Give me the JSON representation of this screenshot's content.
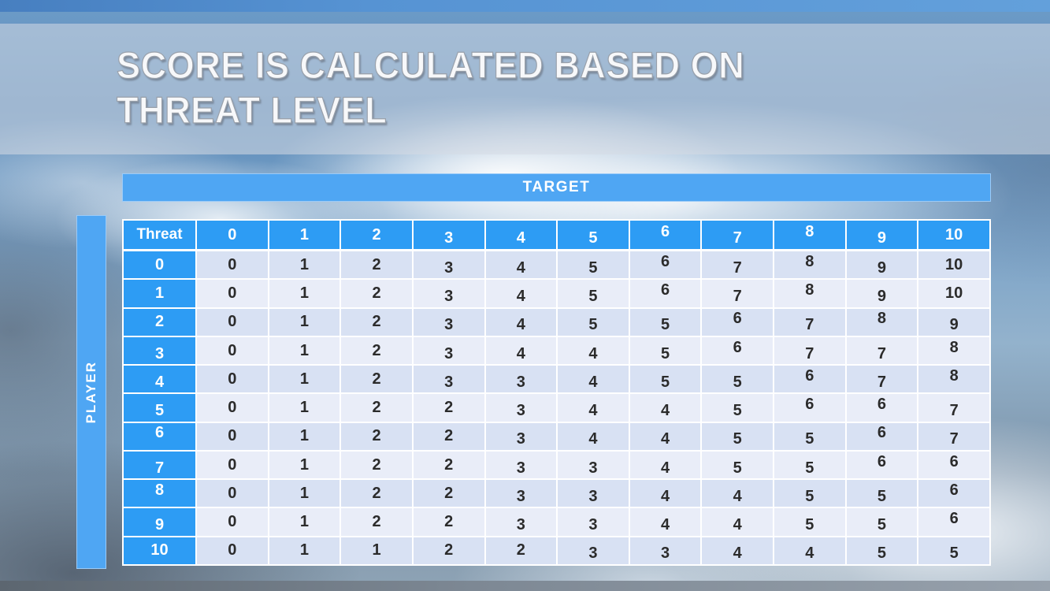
{
  "slide": {
    "title_line1": "SCORE IS CALCULATED BASED ON",
    "title_line2": "THREAT LEVEL"
  },
  "matrix": {
    "target_label": "TARGET",
    "player_label": "PLAYER",
    "corner_label": "Threat",
    "col_headers": [
      "0",
      "1",
      "2",
      "3",
      "4",
      "5",
      "6",
      "7",
      "8",
      "9",
      "10"
    ],
    "rows": [
      {
        "label": "0",
        "values": [
          "0",
          "1",
          "2",
          "3",
          "4",
          "5",
          "6",
          "7",
          "8",
          "9",
          "10"
        ]
      },
      {
        "label": "1",
        "values": [
          "0",
          "1",
          "2",
          "3",
          "4",
          "5",
          "6",
          "7",
          "8",
          "9",
          "10"
        ]
      },
      {
        "label": "2",
        "values": [
          "0",
          "1",
          "2",
          "3",
          "4",
          "5",
          "5",
          "6",
          "7",
          "8",
          "9"
        ]
      },
      {
        "label": "3",
        "values": [
          "0",
          "1",
          "2",
          "3",
          "4",
          "4",
          "5",
          "6",
          "7",
          "7",
          "8"
        ]
      },
      {
        "label": "4",
        "values": [
          "0",
          "1",
          "2",
          "3",
          "3",
          "4",
          "5",
          "5",
          "6",
          "7",
          "8"
        ]
      },
      {
        "label": "5",
        "values": [
          "0",
          "1",
          "2",
          "2",
          "3",
          "4",
          "4",
          "5",
          "6",
          "6",
          "7"
        ]
      },
      {
        "label": "6",
        "values": [
          "0",
          "1",
          "2",
          "2",
          "3",
          "4",
          "4",
          "5",
          "5",
          "6",
          "7"
        ]
      },
      {
        "label": "7",
        "values": [
          "0",
          "1",
          "2",
          "2",
          "3",
          "3",
          "4",
          "5",
          "5",
          "6",
          "6"
        ]
      },
      {
        "label": "8",
        "values": [
          "0",
          "1",
          "2",
          "2",
          "3",
          "3",
          "4",
          "4",
          "5",
          "5",
          "6"
        ]
      },
      {
        "label": "9",
        "values": [
          "0",
          "1",
          "2",
          "2",
          "3",
          "3",
          "4",
          "4",
          "5",
          "5",
          "6"
        ]
      },
      {
        "label": "10",
        "values": [
          "0",
          "1",
          "1",
          "2",
          "2",
          "3",
          "3",
          "4",
          "4",
          "5",
          "5"
        ]
      }
    ]
  },
  "colors": {
    "header_blue": "#2d9cf4",
    "bar_blue": "#4fa6f3",
    "topbar_blue": "#5693d3",
    "row_a": "#d8e1f3",
    "row_b": "#e9edf8",
    "cell_text": "#2b2b2b"
  }
}
